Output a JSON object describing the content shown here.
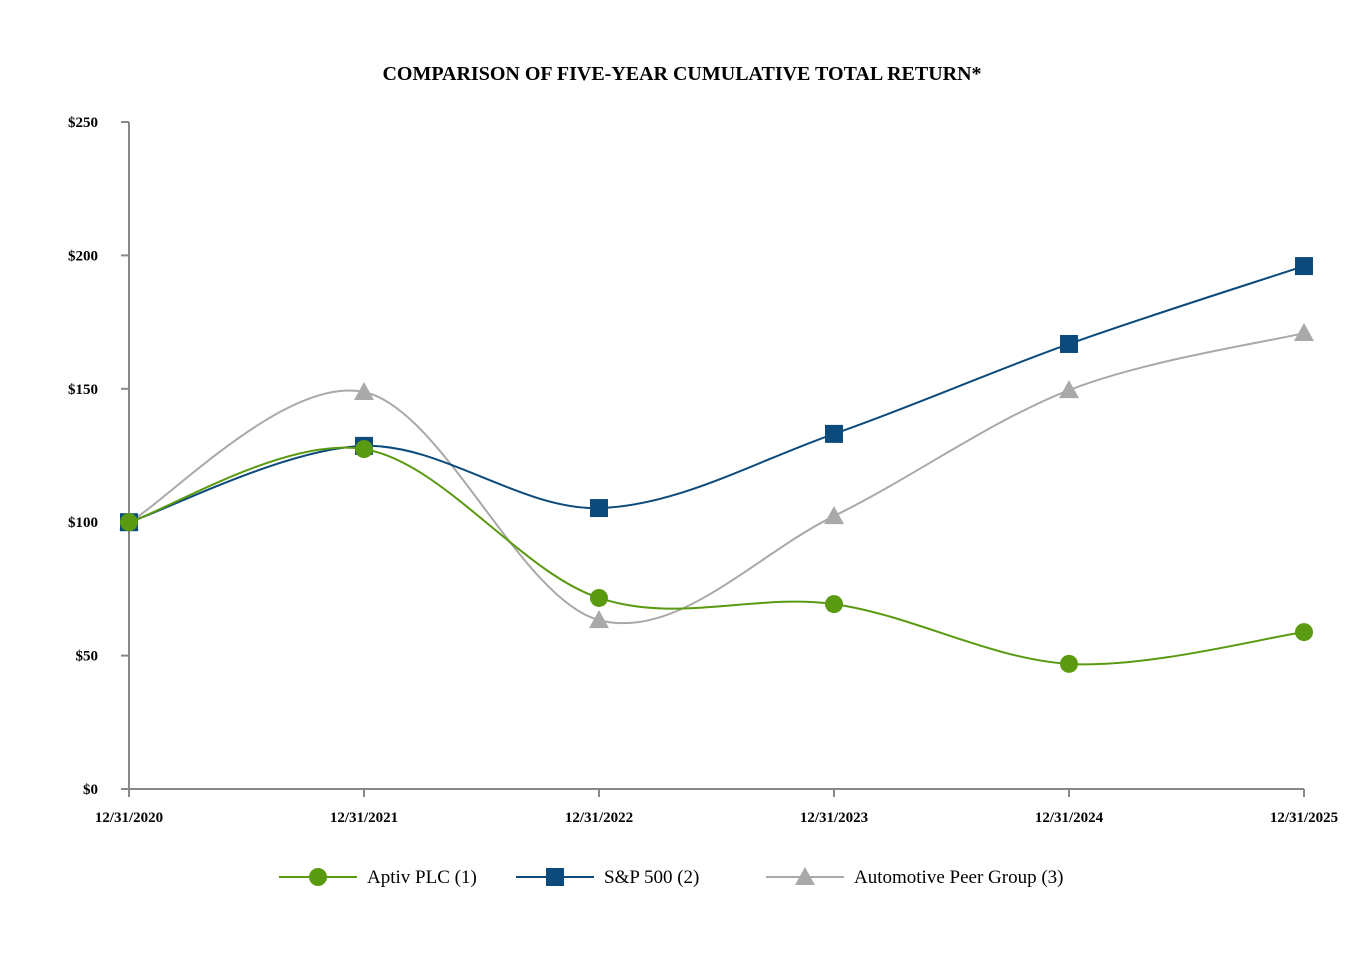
{
  "chart_data": {
    "type": "line",
    "title": "COMPARISON OF FIVE-YEAR CUMULATIVE TOTAL RETURN*",
    "xlabel": "",
    "ylabel": "",
    "categories": [
      "12/31/2020",
      "12/31/2021",
      "12/31/2022",
      "12/31/2023",
      "12/31/2024",
      "12/31/2025"
    ],
    "ylim": [
      0,
      250
    ],
    "yticks": [
      0,
      50,
      100,
      150,
      200,
      250
    ],
    "ytick_labels": [
      "$0",
      "$50",
      "$100",
      "$150",
      "$200",
      "$250"
    ],
    "grid": false,
    "legend_position": "bottom",
    "series": [
      {
        "name": "Aptiv PLC (1)",
        "color": "#5a9a10",
        "marker": "circle",
        "values": [
          100,
          127.4,
          71.6,
          69.3,
          46.9,
          58.8
        ]
      },
      {
        "name": "S&P 500 (2)",
        "color": "#0b4a7a",
        "marker": "square",
        "values": [
          100,
          128.6,
          105.3,
          133.1,
          166.8,
          196.0
        ]
      },
      {
        "name": "Automotive Peer Group (3)",
        "color": "#a9a9a9",
        "marker": "triangle",
        "values": [
          100,
          148.8,
          63.3,
          102.3,
          149.5,
          170.9
        ]
      }
    ]
  }
}
